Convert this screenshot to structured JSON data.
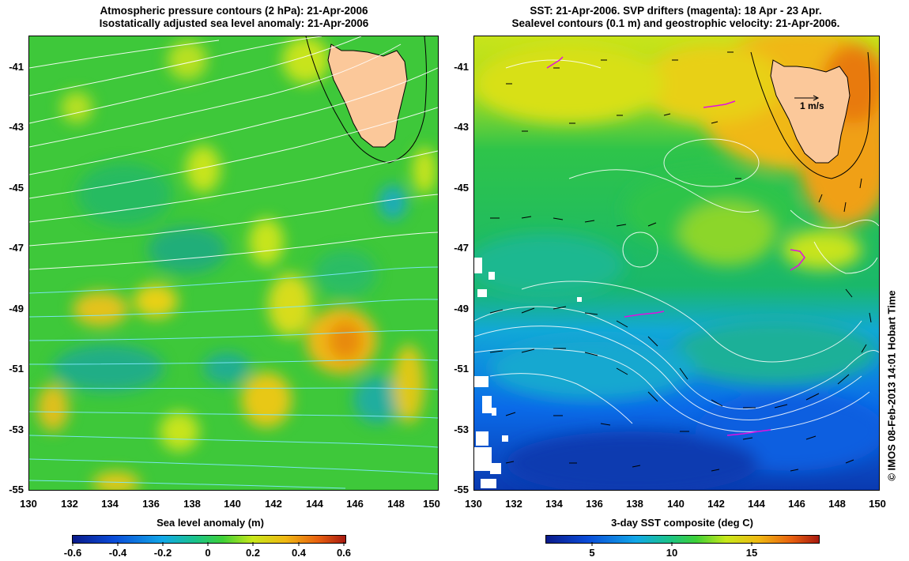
{
  "left_panel": {
    "title_line1": "Atmospheric pressure contours (2 hPa): 21-Apr-2006",
    "title_line2": "Isostatically adjusted sea level anomaly: 21-Apr-2006",
    "colorbar_title": "Sea level anomaly (m)",
    "colorbar_ticks": [
      "-0.6",
      "-0.4",
      "-0.2",
      "0",
      "0.2",
      "0.4",
      "0.6"
    ],
    "colorbar_colors": [
      "#0a1a8a",
      "#0a4bd8",
      "#12a8e8",
      "#1ac38a",
      "#3ed038",
      "#c8e81a",
      "#f0b812",
      "#e86010",
      "#a81a10"
    ]
  },
  "right_panel": {
    "title_line1": "SST: 21-Apr-2006. SVP drifters (magenta): 18 Apr - 23 Apr.",
    "title_line2": "Sealevel contours (0.1 m) and geostrophic velocity: 21-Apr-2006.",
    "colorbar_title": "3-day SST composite (deg C)",
    "colorbar_ticks": [
      "5",
      "10",
      "15"
    ],
    "scale_label": "1 m/s",
    "colorbar_colors": [
      "#0a1a8a",
      "#0a4bd8",
      "#12a8e8",
      "#1ac38a",
      "#3ed038",
      "#c8e81a",
      "#f0b812",
      "#e86010",
      "#a81a10"
    ]
  },
  "axes": {
    "y_ticks": [
      "-41",
      "-43",
      "-45",
      "-47",
      "-49",
      "-51",
      "-53",
      "-55"
    ],
    "x_ticks": [
      "130",
      "132",
      "134",
      "136",
      "138",
      "140",
      "142",
      "144",
      "146",
      "148",
      "150"
    ]
  },
  "credit": "© IMOS 08-Feb-2013 14:01 Hobart Time"
}
